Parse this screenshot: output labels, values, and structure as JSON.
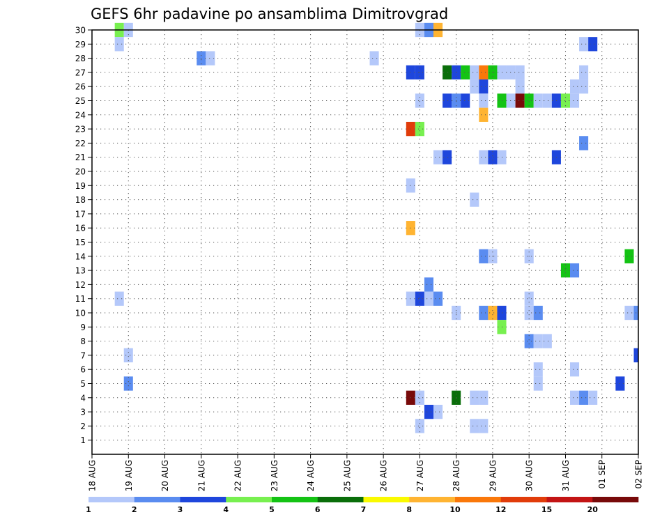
{
  "chart_data": {
    "type": "heatmap",
    "title": "GEFS 6hr padavine po ansamblima Dimitrovgrad",
    "xlabel": "",
    "ylabel": "",
    "x_tick_labels": [
      "18 AUG",
      "19 AUG",
      "20 AUG",
      "21 AUG",
      "22 AUG",
      "23 AUG",
      "24 AUG",
      "25 AUG",
      "26 AUG",
      "27 AUG",
      "28 AUG",
      "29 AUG",
      "30 AUG",
      "31 AUG",
      "01 SEP",
      "02 SEP"
    ],
    "y_tick_labels": [
      "1",
      "2",
      "3",
      "4",
      "5",
      "6",
      "7",
      "8",
      "9",
      "10",
      "11",
      "12",
      "13",
      "14",
      "15",
      "16",
      "17",
      "18",
      "19",
      "20",
      "21",
      "22",
      "23",
      "24",
      "25",
      "26",
      "27",
      "28",
      "29",
      "30"
    ],
    "x_range": [
      "18 AUG 00",
      "02 SEP 00"
    ],
    "x_step_hours": 6,
    "y_range": [
      0,
      30
    ],
    "grid": true,
    "colorbar": {
      "position": "bottom",
      "labels": [
        "1",
        "2",
        "3",
        "4",
        "5",
        "6",
        "7",
        "8",
        "10",
        "12",
        "15",
        "20"
      ],
      "colors": [
        "#b4c8fa",
        "#5a8cf0",
        "#1e46dc",
        "#78f050",
        "#14c314",
        "#0a6e0a",
        "#fafa00",
        "#ffb432",
        "#fa780a",
        "#e13c0a",
        "#c31414",
        "#780a0a"
      ]
    },
    "cells": [
      {
        "x": "18 AUG 18",
        "member": 30,
        "class": 4
      },
      {
        "x": "19 AUG 00",
        "member": 30,
        "class": 1
      },
      {
        "x": "27 AUG 00",
        "member": 30,
        "class": 1
      },
      {
        "x": "27 AUG 06",
        "member": 30,
        "class": 2
      },
      {
        "x": "27 AUG 12",
        "member": 30,
        "class": 8
      },
      {
        "x": "18 AUG 18",
        "member": 29,
        "class": 1
      },
      {
        "x": "31 AUG 12",
        "member": 29,
        "class": 1
      },
      {
        "x": "31 AUG 18",
        "member": 29,
        "class": 3
      },
      {
        "x": "21 AUG 00",
        "member": 28,
        "class": 2
      },
      {
        "x": "21 AUG 06",
        "member": 28,
        "class": 1
      },
      {
        "x": "25 AUG 18",
        "member": 28,
        "class": 1
      },
      {
        "x": "26 AUG 18",
        "member": 27,
        "class": 3
      },
      {
        "x": "27 AUG 00",
        "member": 27,
        "class": 3
      },
      {
        "x": "27 AUG 18",
        "member": 27,
        "class": 6
      },
      {
        "x": "28 AUG 00",
        "member": 27,
        "class": 3
      },
      {
        "x": "28 AUG 06",
        "member": 27,
        "class": 5
      },
      {
        "x": "28 AUG 12",
        "member": 27,
        "class": 1
      },
      {
        "x": "28 AUG 18",
        "member": 27,
        "class": 9
      },
      {
        "x": "29 AUG 00",
        "member": 27,
        "class": 5
      },
      {
        "x": "29 AUG 06",
        "member": 27,
        "class": 1
      },
      {
        "x": "29 AUG 12",
        "member": 27,
        "class": 1
      },
      {
        "x": "29 AUG 18",
        "member": 27,
        "class": 1
      },
      {
        "x": "31 AUG 12",
        "member": 27,
        "class": 1
      },
      {
        "x": "28 AUG 12",
        "member": 26,
        "class": 1
      },
      {
        "x": "28 AUG 18",
        "member": 26,
        "class": 3
      },
      {
        "x": "29 AUG 18",
        "member": 26,
        "class": 1
      },
      {
        "x": "31 AUG 06",
        "member": 26,
        "class": 1
      },
      {
        "x": "31 AUG 12",
        "member": 26,
        "class": 1
      },
      {
        "x": "27 AUG 00",
        "member": 25,
        "class": 1
      },
      {
        "x": "27 AUG 18",
        "member": 25,
        "class": 3
      },
      {
        "x": "28 AUG 00",
        "member": 25,
        "class": 2
      },
      {
        "x": "28 AUG 06",
        "member": 25,
        "class": 3
      },
      {
        "x": "28 AUG 18",
        "member": 25,
        "class": 1
      },
      {
        "x": "29 AUG 06",
        "member": 25,
        "class": 5
      },
      {
        "x": "29 AUG 12",
        "member": 25,
        "class": 1
      },
      {
        "x": "29 AUG 18",
        "member": 25,
        "class": 12
      },
      {
        "x": "30 AUG 00",
        "member": 25,
        "class": 5
      },
      {
        "x": "30 AUG 06",
        "member": 25,
        "class": 1
      },
      {
        "x": "30 AUG 12",
        "member": 25,
        "class": 1
      },
      {
        "x": "30 AUG 18",
        "member": 25,
        "class": 3
      },
      {
        "x": "31 AUG 00",
        "member": 25,
        "class": 4
      },
      {
        "x": "31 AUG 06",
        "member": 25,
        "class": 1
      },
      {
        "x": "28 AUG 18",
        "member": 24,
        "class": 8
      },
      {
        "x": "26 AUG 18",
        "member": 23,
        "class": 10
      },
      {
        "x": "27 AUG 00",
        "member": 23,
        "class": 4
      },
      {
        "x": "31 AUG 12",
        "member": 22,
        "class": 2
      },
      {
        "x": "27 AUG 12",
        "member": 21,
        "class": 1
      },
      {
        "x": "27 AUG 18",
        "member": 21,
        "class": 3
      },
      {
        "x": "28 AUG 18",
        "member": 21,
        "class": 1
      },
      {
        "x": "29 AUG 00",
        "member": 21,
        "class": 3
      },
      {
        "x": "29 AUG 06",
        "member": 21,
        "class": 1
      },
      {
        "x": "30 AUG 18",
        "member": 21,
        "class": 3
      },
      {
        "x": "26 AUG 18",
        "member": 19,
        "class": 1
      },
      {
        "x": "28 AUG 12",
        "member": 18,
        "class": 1
      },
      {
        "x": "26 AUG 18",
        "member": 16,
        "class": 8
      },
      {
        "x": "28 AUG 18",
        "member": 14,
        "class": 2
      },
      {
        "x": "29 AUG 00",
        "member": 14,
        "class": 1
      },
      {
        "x": "30 AUG 00",
        "member": 14,
        "class": 1
      },
      {
        "x": "01 SEP 18",
        "member": 14,
        "class": 5
      },
      {
        "x": "31 AUG 00",
        "member": 13,
        "class": 5
      },
      {
        "x": "31 AUG 06",
        "member": 13,
        "class": 2
      },
      {
        "x": "27 AUG 06",
        "member": 12,
        "class": 2
      },
      {
        "x": "18 AUG 18",
        "member": 11,
        "class": 1
      },
      {
        "x": "26 AUG 18",
        "member": 11,
        "class": 1
      },
      {
        "x": "27 AUG 00",
        "member": 11,
        "class": 3
      },
      {
        "x": "27 AUG 06",
        "member": 11,
        "class": 1
      },
      {
        "x": "27 AUG 12",
        "member": 11,
        "class": 2
      },
      {
        "x": "30 AUG 00",
        "member": 11,
        "class": 1
      },
      {
        "x": "28 AUG 00",
        "member": 10,
        "class": 1
      },
      {
        "x": "28 AUG 18",
        "member": 10,
        "class": 2
      },
      {
        "x": "29 AUG 00",
        "member": 10,
        "class": 8
      },
      {
        "x": "29 AUG 06",
        "member": 10,
        "class": 3
      },
      {
        "x": "30 AUG 00",
        "member": 10,
        "class": 1
      },
      {
        "x": "30 AUG 06",
        "member": 10,
        "class": 2
      },
      {
        "x": "01 SEP 18",
        "member": 10,
        "class": 1
      },
      {
        "x": "02 SEP 00",
        "member": 10,
        "class": 2
      },
      {
        "x": "29 AUG 06",
        "member": 9,
        "class": 4
      },
      {
        "x": "30 AUG 00",
        "member": 8,
        "class": 2
      },
      {
        "x": "30 AUG 06",
        "member": 8,
        "class": 1
      },
      {
        "x": "30 AUG 12",
        "member": 8,
        "class": 1
      },
      {
        "x": "19 AUG 00",
        "member": 7,
        "class": 1
      },
      {
        "x": "02 SEP 00",
        "member": 7,
        "class": 3
      },
      {
        "x": "30 AUG 06",
        "member": 6,
        "class": 1
      },
      {
        "x": "31 AUG 06",
        "member": 6,
        "class": 1
      },
      {
        "x": "19 AUG 00",
        "member": 5,
        "class": 2
      },
      {
        "x": "30 AUG 06",
        "member": 5,
        "class": 1
      },
      {
        "x": "01 SEP 12",
        "member": 5,
        "class": 3
      },
      {
        "x": "26 AUG 18",
        "member": 4,
        "class": 12
      },
      {
        "x": "27 AUG 00",
        "member": 4,
        "class": 1
      },
      {
        "x": "28 AUG 00",
        "member": 4,
        "class": 6
      },
      {
        "x": "28 AUG 12",
        "member": 4,
        "class": 1
      },
      {
        "x": "28 AUG 18",
        "member": 4,
        "class": 1
      },
      {
        "x": "31 AUG 06",
        "member": 4,
        "class": 1
      },
      {
        "x": "31 AUG 12",
        "member": 4,
        "class": 2
      },
      {
        "x": "31 AUG 18",
        "member": 4,
        "class": 1
      },
      {
        "x": "27 AUG 06",
        "member": 3,
        "class": 3
      },
      {
        "x": "27 AUG 12",
        "member": 3,
        "class": 1
      },
      {
        "x": "27 AUG 00",
        "member": 2,
        "class": 1
      },
      {
        "x": "28 AUG 12",
        "member": 2,
        "class": 1
      },
      {
        "x": "28 AUG 18",
        "member": 2,
        "class": 1
      }
    ]
  }
}
